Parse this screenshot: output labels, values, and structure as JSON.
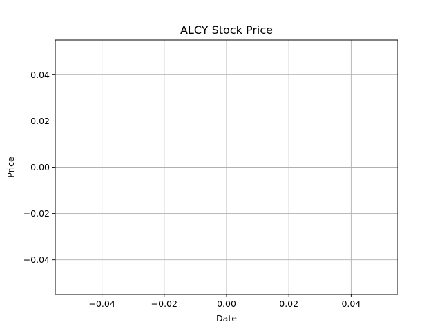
{
  "chart_data": {
    "type": "line",
    "title": "ALCY Stock Price",
    "xlabel": "Date",
    "ylabel": "Price",
    "series": [],
    "xlim": [
      -0.055,
      0.055
    ],
    "ylim": [
      -0.055,
      0.055
    ],
    "xticks": [
      -0.04,
      -0.02,
      0.0,
      0.02,
      0.04
    ],
    "yticks": [
      -0.04,
      -0.02,
      0.0,
      0.02,
      0.04
    ],
    "xtick_labels": [
      "−0.04",
      "−0.02",
      "0.00",
      "0.02",
      "0.04"
    ],
    "ytick_labels": [
      "−0.04",
      "−0.02",
      "0.00",
      "0.02",
      "0.04"
    ],
    "grid": true,
    "legend": "none"
  }
}
